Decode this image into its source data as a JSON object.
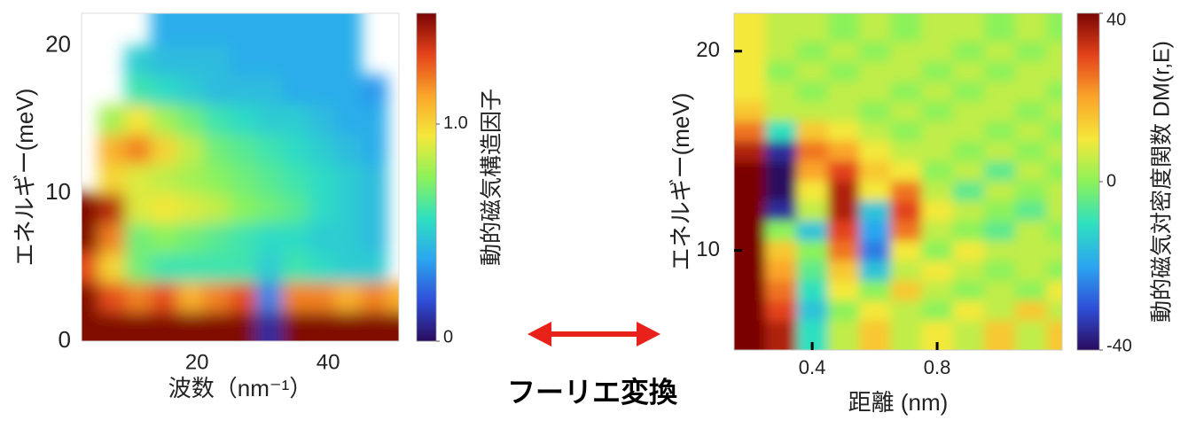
{
  "chart_data": [
    {
      "type": "heatmap",
      "ylabel": "エネルギー(meV)",
      "xlabel": "波数（nm⁻¹）",
      "colorbar_label": "動的磁気構造因子",
      "x": [
        3,
        7,
        11,
        15,
        19,
        23,
        27,
        31,
        35,
        39,
        43,
        47,
        51
      ],
      "y": [
        1,
        3,
        5,
        7,
        9,
        11,
        13,
        15,
        17,
        19,
        21
      ],
      "z": [
        [
          1.5,
          1.5,
          1.5,
          1.5,
          1.5,
          1.5,
          1.5,
          0.1,
          1.5,
          1.5,
          1.5,
          1.5,
          1.5
        ],
        [
          1.5,
          1.3,
          1.2,
          1.3,
          1.1,
          1.2,
          1.3,
          0.3,
          1.2,
          1.2,
          1.1,
          1.2,
          1.1
        ],
        [
          1.3,
          1.0,
          0.7,
          0.6,
          0.6,
          0.6,
          0.6,
          0.5,
          0.6,
          0.55,
          0.5,
          0.5,
          null
        ],
        [
          1.5,
          1.2,
          0.7,
          0.75,
          0.7,
          0.65,
          0.6,
          0.55,
          0.55,
          0.5,
          0.5,
          0.45,
          null
        ],
        [
          1.5,
          1.4,
          0.9,
          0.95,
          0.9,
          0.85,
          0.75,
          0.7,
          0.65,
          0.55,
          0.5,
          0.45,
          null
        ],
        [
          null,
          1.0,
          0.9,
          0.85,
          0.8,
          0.75,
          0.7,
          0.65,
          0.6,
          0.55,
          0.5,
          0.45,
          null
        ],
        [
          null,
          1.1,
          1.2,
          1.0,
          0.85,
          0.7,
          0.65,
          0.6,
          0.55,
          0.5,
          0.45,
          0.4,
          null
        ],
        [
          null,
          0.8,
          0.95,
          0.8,
          0.7,
          0.6,
          0.55,
          0.5,
          0.5,
          0.45,
          0.4,
          0.4,
          null
        ],
        [
          null,
          null,
          0.6,
          0.55,
          0.5,
          0.45,
          0.45,
          0.45,
          0.4,
          0.4,
          0.4,
          0.35,
          null
        ],
        [
          null,
          null,
          0.5,
          0.45,
          0.45,
          0.45,
          0.4,
          0.4,
          0.4,
          0.4,
          0.4,
          null,
          null
        ],
        [
          null,
          null,
          null,
          0.4,
          0.4,
          0.4,
          0.4,
          0.4,
          0.4,
          0.4,
          0.4,
          null,
          null
        ]
      ],
      "xlim": [
        2.4,
        50.8
      ],
      "ylim": [
        0,
        22.2
      ],
      "xticks": [
        20,
        40
      ],
      "yticks": [
        0,
        10,
        20
      ],
      "clim": [
        0,
        1.51
      ],
      "cticks": [
        0,
        {
          "value": 1.0,
          "label": "1.0"
        }
      ],
      "colorscale": [
        "#2a0b5e",
        "#2f4fd8",
        "#2ba6f0",
        "#2fe0c0",
        "#8cf25a",
        "#f4e83a",
        "#fba52a",
        "#e3431a",
        "#7a0403"
      ]
    },
    {
      "type": "heatmap",
      "ylabel": "エネルギー(meV)",
      "xlabel": "距離 (nm)",
      "colorbar_label": "動的磁気対密度関数 DM(r,E)",
      "x": [
        0.2,
        0.3,
        0.4,
        0.5,
        0.6,
        0.7,
        0.8,
        0.9,
        1.0,
        1.1,
        1.2
      ],
      "y": [
        6,
        7,
        8,
        9,
        10,
        11,
        12,
        13,
        14,
        15,
        16,
        17,
        18,
        19,
        20,
        21
      ],
      "z": [
        [
          40,
          35,
          -10,
          5,
          15,
          5,
          10,
          5,
          15,
          5,
          15
        ],
        [
          40,
          30,
          -15,
          0,
          10,
          5,
          0,
          10,
          5,
          15,
          5
        ],
        [
          40,
          25,
          -10,
          10,
          0,
          15,
          5,
          0,
          5,
          0,
          10
        ],
        [
          40,
          20,
          -5,
          15,
          -15,
          5,
          10,
          5,
          0,
          5,
          0
        ],
        [
          40,
          15,
          0,
          25,
          -25,
          10,
          0,
          10,
          5,
          5,
          5
        ],
        [
          40,
          0,
          -15,
          30,
          -20,
          25,
          5,
          0,
          -5,
          5,
          0
        ],
        [
          40,
          -35,
          5,
          35,
          -15,
          30,
          10,
          5,
          0,
          -5,
          5
        ],
        [
          40,
          -40,
          10,
          35,
          10,
          25,
          5,
          -5,
          5,
          0,
          5
        ],
        [
          40,
          -40,
          20,
          30,
          15,
          10,
          0,
          5,
          -5,
          5,
          0
        ],
        [
          35,
          -35,
          25,
          20,
          10,
          5,
          5,
          0,
          5,
          0,
          5
        ],
        [
          25,
          -10,
          15,
          10,
          5,
          0,
          5,
          5,
          0,
          5,
          0
        ],
        [
          15,
          5,
          5,
          5,
          0,
          5,
          0,
          5,
          5,
          0,
          5
        ],
        [
          10,
          5,
          0,
          5,
          5,
          0,
          5,
          0,
          5,
          5,
          0
        ],
        [
          10,
          0,
          5,
          0,
          5,
          5,
          0,
          5,
          0,
          5,
          5
        ],
        [
          10,
          5,
          0,
          5,
          0,
          5,
          5,
          0,
          5,
          0,
          5
        ],
        [
          10,
          5,
          5,
          0,
          5,
          0,
          5,
          5,
          0,
          5,
          0
        ]
      ],
      "xlim": [
        0.15,
        1.2
      ],
      "ylim": [
        5,
        21.9
      ],
      "xticks": [
        0.4,
        0.8
      ],
      "yticks": [
        10,
        20
      ],
      "clim": [
        -40,
        40
      ],
      "cticks": [
        -40,
        0,
        40
      ],
      "colorscale": [
        "#2a0b5e",
        "#2f4fd8",
        "#2ba6f0",
        "#2fe0c0",
        "#8cf25a",
        "#f4e83a",
        "#fba52a",
        "#e3431a",
        "#7a0403"
      ]
    }
  ],
  "annotation": "フーリエ変換"
}
